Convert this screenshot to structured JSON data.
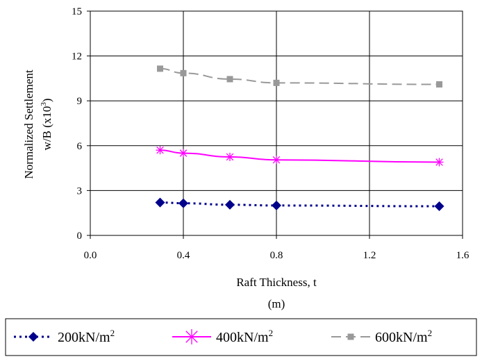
{
  "chart_data": {
    "type": "line",
    "xlabel": "Raft Thickness, t",
    "xlabel_unit": "(m)",
    "ylabel_line1": "Normalized Settlement",
    "ylabel_line2_base": "w/B (x10",
    "ylabel_line2_sup": "3",
    "ylabel_line2_end": ")",
    "xlim": [
      0.0,
      1.6
    ],
    "ylim": [
      0,
      15
    ],
    "x_ticks": [
      "0.0",
      "0.4",
      "0.8",
      "1.2",
      "1.6"
    ],
    "y_ticks": [
      "0",
      "3",
      "6",
      "9",
      "12",
      "15"
    ],
    "grid": "vertical and horizontal",
    "legend_position": "bottom",
    "series": [
      {
        "name_base": "200kN/m",
        "name_sup": "2",
        "color": "#00008B",
        "marker": "diamond",
        "line": "dotted",
        "x": [
          0.3,
          0.4,
          0.6,
          0.8,
          1.5
        ],
        "y": [
          2.2,
          2.15,
          2.05,
          2.0,
          1.95
        ]
      },
      {
        "name_base": "400kN/m",
        "name_sup": "2",
        "color": "#FF00FF",
        "marker": "star",
        "line": "solid",
        "x": [
          0.3,
          0.4,
          0.6,
          0.8,
          1.5
        ],
        "y": [
          5.7,
          5.5,
          5.25,
          5.05,
          4.9
        ]
      },
      {
        "name_base": "600kN/m",
        "name_sup": "2",
        "color": "#999999",
        "marker": "square",
        "line": "dashed",
        "x": [
          0.3,
          0.4,
          0.6,
          0.8,
          1.5
        ],
        "y": [
          11.15,
          10.85,
          10.45,
          10.2,
          10.1
        ]
      }
    ]
  }
}
